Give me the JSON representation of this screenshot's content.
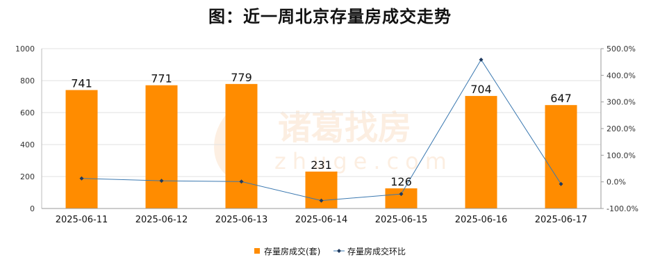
{
  "chart_data": {
    "type": "bar",
    "title": "图：近一周北京存量房成交走势",
    "categories": [
      "2025-06-11",
      "2025-06-12",
      "2025-06-13",
      "2025-06-14",
      "2025-06-15",
      "2025-06-16",
      "2025-06-17"
    ],
    "series": [
      {
        "name": "存量房成交(套)",
        "type": "bar",
        "axis": "left",
        "values": [
          741,
          771,
          779,
          231,
          126,
          704,
          647
        ],
        "color": "#FF8C00"
      },
      {
        "name": "存量房成交环比",
        "type": "line",
        "axis": "right",
        "values": [
          12.9,
          4.0,
          1.0,
          -70.3,
          -45.5,
          458.7,
          -8.1
        ],
        "color": "#3A78B0"
      }
    ],
    "y_left": {
      "min": 0,
      "max": 1000,
      "ticks": [
        "0",
        "200",
        "400",
        "600",
        "800",
        "1000"
      ]
    },
    "y_right": {
      "min": -100,
      "max": 500,
      "ticks": [
        "-100.0%",
        "0.0%",
        "100.0%",
        "200.0%",
        "300.0%",
        "400.0%",
        "500.0%"
      ]
    },
    "grid": true,
    "legend": "bottom"
  },
  "watermark": {
    "brand": "诸葛找房",
    "domain": "zhuge.com"
  }
}
